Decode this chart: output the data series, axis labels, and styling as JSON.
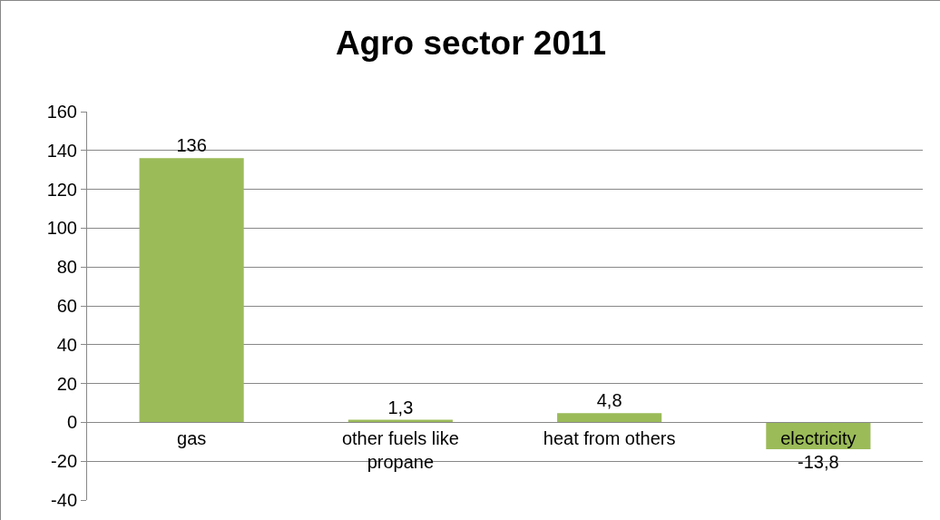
{
  "chart_data": {
    "type": "bar",
    "title": "Agro sector 2011",
    "categories": [
      "gas",
      "other fuels like propane",
      "heat from others",
      "electricity"
    ],
    "values": [
      136,
      1.3,
      4.8,
      -13.8
    ],
    "value_labels": [
      "136",
      "1,3",
      "4,8",
      "-13,8"
    ],
    "color": "#9bbb59",
    "ylim": [
      -40,
      160
    ],
    "yticks": [
      -40,
      -20,
      0,
      20,
      40,
      60,
      80,
      100,
      120,
      140,
      160
    ],
    "grid": "y"
  }
}
